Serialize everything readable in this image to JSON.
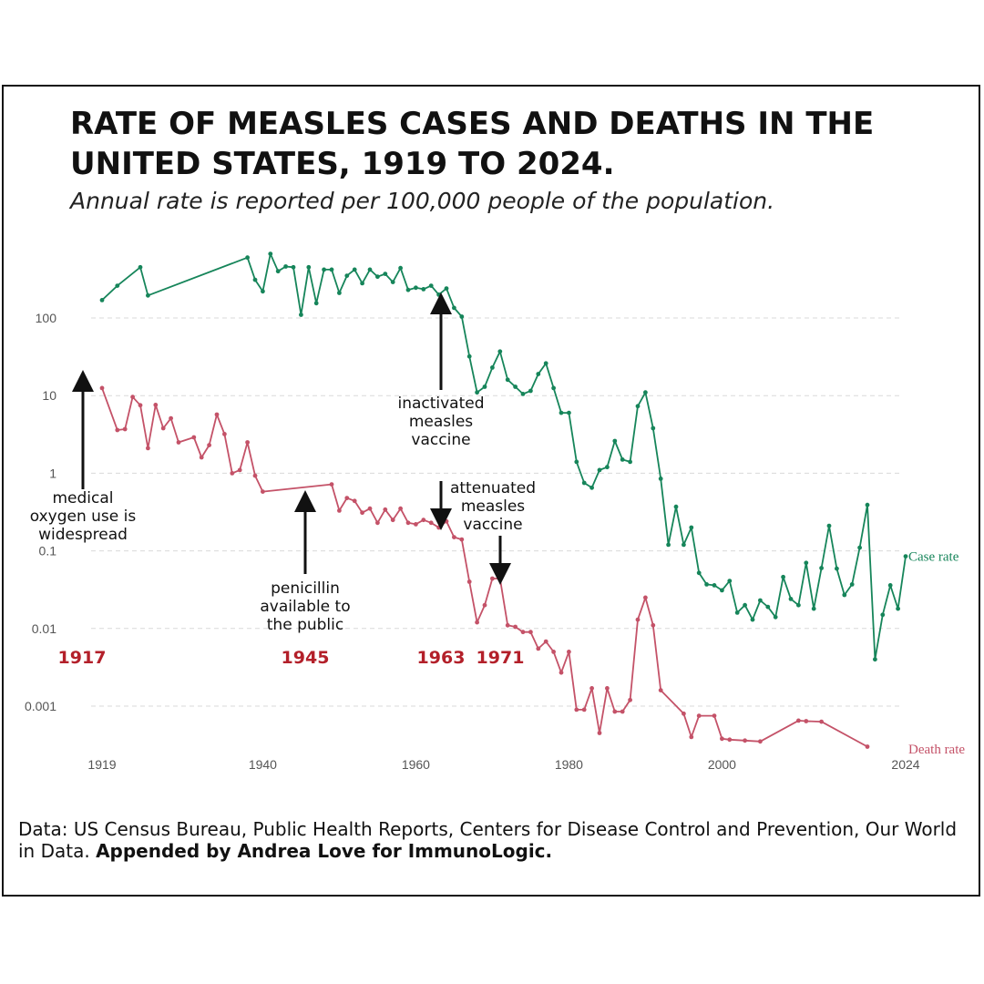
{
  "title": "RATE OF MEASLES CASES AND DEATHS IN THE UNITED STATES, 1919 TO 2024.",
  "subtitle": "Annual rate is reported per 100,000 people of the population.",
  "source": {
    "text": "Data: US Census Bureau, Public Health Reports, Centers for Disease Control and Prevention, Our World in Data.",
    "bold": "Appended by Andrea Love for ImmunoLogic."
  },
  "colors": {
    "case": "#16855a",
    "death": "#c45268",
    "year": "#b3202a",
    "grid": "#d9d9d9"
  },
  "chart_data": {
    "type": "line",
    "title": "RATE OF MEASLES CASES AND DEATHS IN THE UNITED STATES, 1919 TO 2024.",
    "xlabel": "",
    "ylabel": "",
    "xlim": [
      1917,
      2024
    ],
    "ylim": [
      0.0002,
      1000
    ],
    "yscale": "log",
    "grid": "horizontal dashed",
    "x_ticks": [
      {
        "value": 1919,
        "label": "1919"
      },
      {
        "value": 1940,
        "label": "1940"
      },
      {
        "value": 1960,
        "label": "1960"
      },
      {
        "value": 1980,
        "label": "1980"
      },
      {
        "value": 2000,
        "label": "2000"
      },
      {
        "value": 2024,
        "label": "2024"
      }
    ],
    "y_ticks": [
      {
        "value": 100,
        "label": "100"
      },
      {
        "value": 10,
        "label": "10"
      },
      {
        "value": 1,
        "label": "1"
      },
      {
        "value": 0.1,
        "label": "0.1"
      },
      {
        "value": 0.01,
        "label": "0.01"
      },
      {
        "value": 0.001,
        "label": "0.001"
      }
    ],
    "series": [
      {
        "name": "Case rate",
        "color": "#16855a",
        "points": [
          [
            1919,
            170
          ],
          [
            1921,
            260
          ],
          [
            1924,
            450
          ],
          [
            1925,
            195
          ],
          [
            1938,
            600
          ],
          [
            1939,
            310
          ],
          [
            1940,
            220
          ],
          [
            1941,
            670
          ],
          [
            1942,
            400
          ],
          [
            1943,
            460
          ],
          [
            1944,
            450
          ],
          [
            1945,
            110
          ],
          [
            1946,
            450
          ],
          [
            1947,
            155
          ],
          [
            1948,
            420
          ],
          [
            1949,
            420
          ],
          [
            1950,
            210
          ],
          [
            1951,
            350
          ],
          [
            1952,
            420
          ],
          [
            1953,
            280
          ],
          [
            1954,
            420
          ],
          [
            1955,
            340
          ],
          [
            1956,
            370
          ],
          [
            1957,
            290
          ],
          [
            1958,
            440
          ],
          [
            1959,
            230
          ],
          [
            1960,
            245
          ],
          [
            1961,
            235
          ],
          [
            1962,
            260
          ],
          [
            1963,
            200
          ],
          [
            1964,
            240
          ],
          [
            1965,
            135
          ],
          [
            1966,
            104
          ],
          [
            1967,
            32
          ],
          [
            1968,
            11
          ],
          [
            1969,
            13
          ],
          [
            1970,
            23
          ],
          [
            1971,
            37
          ],
          [
            1972,
            16
          ],
          [
            1973,
            13
          ],
          [
            1974,
            10.5
          ],
          [
            1975,
            11.5
          ],
          [
            1976,
            19
          ],
          [
            1977,
            26
          ],
          [
            1978,
            12.5
          ],
          [
            1979,
            6
          ],
          [
            1980,
            6
          ],
          [
            1981,
            1.4
          ],
          [
            1982,
            0.75
          ],
          [
            1983,
            0.65
          ],
          [
            1984,
            1.1
          ],
          [
            1985,
            1.2
          ],
          [
            1986,
            2.6
          ],
          [
            1987,
            1.5
          ],
          [
            1988,
            1.4
          ],
          [
            1989,
            7.3
          ],
          [
            1990,
            11
          ],
          [
            1991,
            3.8
          ],
          [
            1992,
            0.85
          ],
          [
            1993,
            0.12
          ],
          [
            1994,
            0.37
          ],
          [
            1995,
            0.12
          ],
          [
            1996,
            0.2
          ],
          [
            1997,
            0.052
          ],
          [
            1998,
            0.037
          ],
          [
            1999,
            0.036
          ],
          [
            2000,
            0.031
          ],
          [
            2001,
            0.041
          ],
          [
            2002,
            0.016
          ],
          [
            2003,
            0.02
          ],
          [
            2004,
            0.013
          ],
          [
            2005,
            0.023
          ],
          [
            2006,
            0.019
          ],
          [
            2007,
            0.014
          ],
          [
            2008,
            0.046
          ],
          [
            2009,
            0.024
          ],
          [
            2010,
            0.02
          ],
          [
            2011,
            0.07
          ],
          [
            2012,
            0.018
          ],
          [
            2013,
            0.06
          ],
          [
            2014,
            0.21
          ],
          [
            2015,
            0.059
          ],
          [
            2016,
            0.027
          ],
          [
            2017,
            0.037
          ],
          [
            2018,
            0.11
          ],
          [
            2019,
            0.39
          ],
          [
            2020,
            0.004
          ],
          [
            2021,
            0.015
          ],
          [
            2022,
            0.036
          ],
          [
            2023,
            0.018
          ],
          [
            2024,
            0.085
          ]
        ]
      },
      {
        "name": "Death rate",
        "color": "#c45268",
        "points": [
          [
            1919,
            12.5
          ],
          [
            1921,
            3.6
          ],
          [
            1922,
            3.7
          ],
          [
            1923,
            9.6
          ],
          [
            1924,
            7.5
          ],
          [
            1925,
            2.1
          ],
          [
            1926,
            7.6
          ],
          [
            1927,
            3.8
          ],
          [
            1928,
            5.1
          ],
          [
            1929,
            2.5
          ],
          [
            1931,
            2.9
          ],
          [
            1932,
            1.6
          ],
          [
            1933,
            2.3
          ],
          [
            1934,
            5.7
          ],
          [
            1935,
            3.2
          ],
          [
            1936,
            1.0
          ],
          [
            1937,
            1.1
          ],
          [
            1938,
            2.5
          ],
          [
            1939,
            0.93
          ],
          [
            1940,
            0.58
          ],
          [
            1949,
            0.72
          ],
          [
            1950,
            0.33
          ],
          [
            1951,
            0.48
          ],
          [
            1952,
            0.44
          ],
          [
            1953,
            0.31
          ],
          [
            1954,
            0.35
          ],
          [
            1955,
            0.23
          ],
          [
            1956,
            0.34
          ],
          [
            1957,
            0.25
          ],
          [
            1958,
            0.35
          ],
          [
            1959,
            0.23
          ],
          [
            1960,
            0.22
          ],
          [
            1961,
            0.25
          ],
          [
            1962,
            0.23
          ],
          [
            1963,
            0.2
          ],
          [
            1964,
            0.24
          ],
          [
            1965,
            0.15
          ],
          [
            1966,
            0.14
          ],
          [
            1967,
            0.04
          ],
          [
            1968,
            0.012
          ],
          [
            1969,
            0.02
          ],
          [
            1970,
            0.044
          ],
          [
            1971,
            0.044
          ],
          [
            1972,
            0.011
          ],
          [
            1973,
            0.0105
          ],
          [
            1974,
            0.009
          ],
          [
            1975,
            0.009
          ],
          [
            1976,
            0.0055
          ],
          [
            1977,
            0.0068
          ],
          [
            1978,
            0.005
          ],
          [
            1979,
            0.0027
          ],
          [
            1980,
            0.005
          ],
          [
            1981,
            0.0009
          ],
          [
            1982,
            0.0009
          ],
          [
            1983,
            0.0017
          ],
          [
            1984,
            0.00045
          ],
          [
            1985,
            0.0017
          ],
          [
            1986,
            0.00085
          ],
          [
            1987,
            0.00085
          ],
          [
            1988,
            0.0012
          ],
          [
            1989,
            0.013
          ],
          [
            1990,
            0.025
          ],
          [
            1991,
            0.011
          ],
          [
            1992,
            0.0016
          ],
          [
            1995,
            0.0008
          ],
          [
            1996,
            0.0004
          ],
          [
            1997,
            0.00075
          ],
          [
            1999,
            0.00075
          ],
          [
            2000,
            0.00038
          ],
          [
            2001,
            0.00037
          ],
          [
            2003,
            0.00036
          ],
          [
            2005,
            0.00035
          ],
          [
            2010,
            0.00065
          ],
          [
            2011,
            0.00064
          ],
          [
            2013,
            0.00063
          ],
          [
            2019,
            0.0003
          ]
        ]
      }
    ],
    "annotations": [
      {
        "year": 1917,
        "label": "1917",
        "text": "medical oxygen use is widespread"
      },
      {
        "year": 1945,
        "label": "1945",
        "text": "penicillin available to the public"
      },
      {
        "year": 1963,
        "label": "1963",
        "text": "inactivated measles vaccine"
      },
      {
        "year": 1971,
        "label": "1971",
        "text": "attenuated measles vaccine"
      }
    ]
  }
}
